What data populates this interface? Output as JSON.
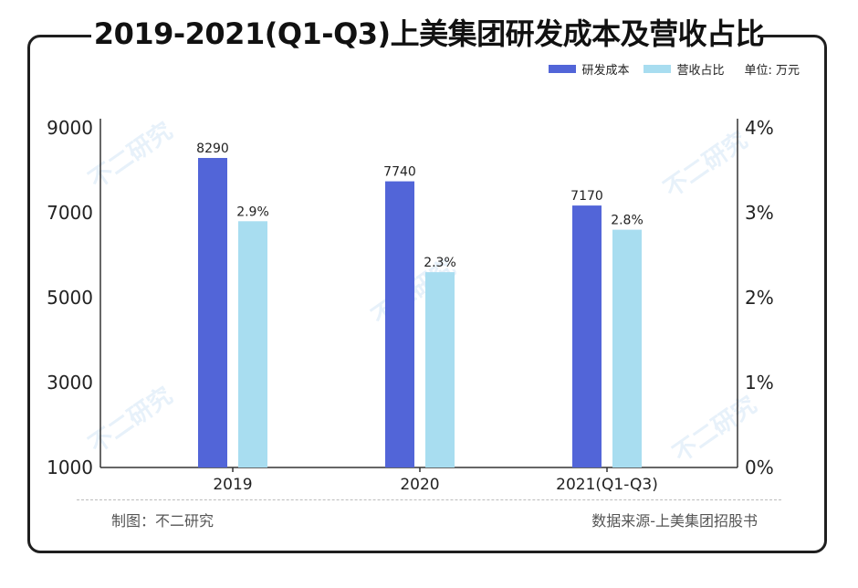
{
  "title": "2019-2021(Q1-Q3)上美集团研发成本及营收占比",
  "legend": {
    "series1": "研发成本",
    "series2": "营收占比",
    "unit": "单位: 万元"
  },
  "footer": {
    "left": "制图：不二研究",
    "right": "数据来源-上美集团招股书"
  },
  "watermark": "不二研究",
  "colors": {
    "series1": "#5265D8",
    "series2": "#A8DDF0",
    "axis": "#333333"
  },
  "chart_data": {
    "type": "bar",
    "categories": [
      "2019",
      "2020",
      "2021(Q1-Q3)"
    ],
    "series": [
      {
        "name": "研发成本",
        "values": [
          8290,
          7740,
          7170
        ],
        "labels": [
          "8290",
          "7740",
          "7170"
        ],
        "axis": "left"
      },
      {
        "name": "营收占比",
        "values": [
          2.9,
          2.3,
          2.8
        ],
        "labels": [
          "2.9%",
          "2.3%",
          "2.8%"
        ],
        "axis": "right"
      }
    ],
    "left_axis": {
      "ylim": [
        1000,
        9000
      ],
      "ticks": [
        "1000",
        "3000",
        "5000",
        "7000",
        "9000"
      ],
      "tick_values": [
        1000,
        3000,
        5000,
        7000,
        9000
      ]
    },
    "right_axis": {
      "ylim": [
        0,
        4
      ],
      "ticks": [
        "0%",
        "1%",
        "2%",
        "3%",
        "4%"
      ],
      "tick_values": [
        0,
        1,
        2,
        3,
        4
      ]
    },
    "legend_position": "top-right",
    "grid": false
  }
}
